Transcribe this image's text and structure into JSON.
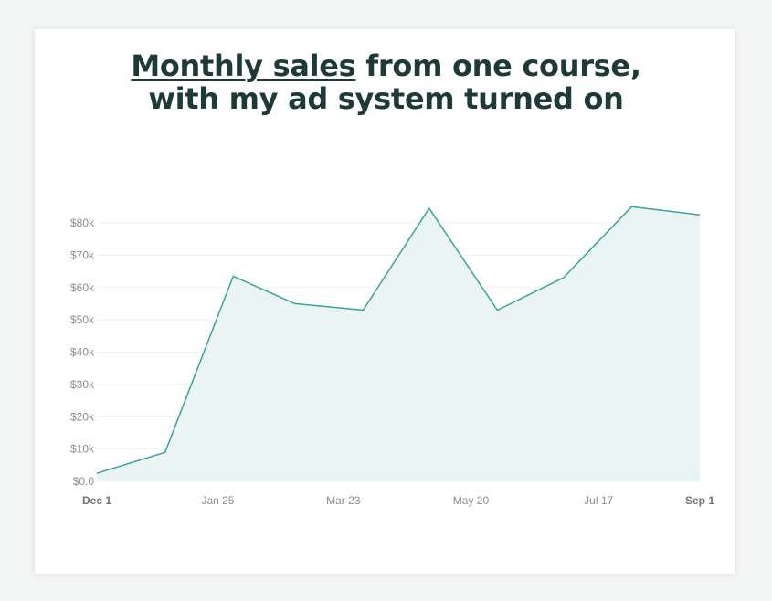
{
  "title": {
    "part1": "Monthly sales",
    "part2": " from one course,",
    "line2": "with my ad system turned on"
  },
  "colors": {
    "line": "#3aa39a",
    "fill": "#eaf5f3",
    "grid": "#eef0f0",
    "title": "#1e3a36"
  },
  "chart_data": {
    "type": "area",
    "title": "Monthly sales from one course, with my ad system turned on",
    "xlabel": "",
    "ylabel": "",
    "ylim": [
      0,
      80000
    ],
    "yticks": [
      0,
      10000,
      20000,
      30000,
      40000,
      50000,
      60000,
      70000,
      80000
    ],
    "ytick_labels": [
      "$0.0",
      "$10k",
      "$20k",
      "$30k",
      "$40k",
      "$50k",
      "$60k",
      "$70k",
      "$80k"
    ],
    "xticks": [
      "Dec 1",
      "Jan 25",
      "Mar 23",
      "May 20",
      "Jul 17",
      "Sep 1"
    ],
    "xtick_bold": [
      true,
      false,
      false,
      false,
      false,
      true
    ],
    "grid": true,
    "series": [
      {
        "x": [
          "Dec 1",
          "Jan 1",
          "Feb 1",
          "Mar 1",
          "Apr 1",
          "May 1",
          "Jun 1",
          "Jul 1",
          "Aug 1",
          "Sep 1"
        ],
        "values": [
          2500,
          9000,
          63500,
          55000,
          53000,
          84500,
          53000,
          63000,
          85000,
          82500
        ]
      }
    ]
  }
}
